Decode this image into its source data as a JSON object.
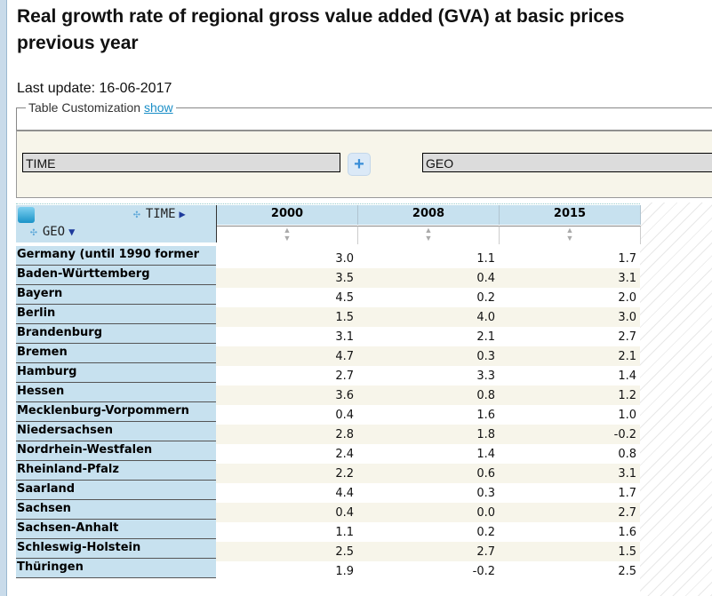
{
  "title_line1": "Real growth rate of regional gross value added (GVA) at basic prices",
  "title_line2": "previous year",
  "last_update": "Last update: 16-06-2017",
  "customization": {
    "label": "Table Customization",
    "link": "show"
  },
  "layout_panel": {
    "row_dim": "TIME",
    "col_dim": "GEO",
    "add_button": "+"
  },
  "table": {
    "time_axis": "TIME",
    "geo_axis": "GEO",
    "columns": [
      "2000",
      "2008",
      "2015"
    ],
    "rows": [
      {
        "geo": "Germany (until 1990 former",
        "values": [
          "3.0",
          "1.1",
          "1.7"
        ]
      },
      {
        "geo": "Baden-Württemberg",
        "values": [
          "3.5",
          "0.4",
          "3.1"
        ]
      },
      {
        "geo": "Bayern",
        "values": [
          "4.5",
          "0.2",
          "2.0"
        ]
      },
      {
        "geo": "Berlin",
        "values": [
          "1.5",
          "4.0",
          "3.0"
        ]
      },
      {
        "geo": "Brandenburg",
        "values": [
          "3.1",
          "2.1",
          "2.7"
        ]
      },
      {
        "geo": "Bremen",
        "values": [
          "4.7",
          "0.3",
          "2.1"
        ]
      },
      {
        "geo": "Hamburg",
        "values": [
          "2.7",
          "3.3",
          "1.4"
        ]
      },
      {
        "geo": "Hessen",
        "values": [
          "3.6",
          "0.8",
          "1.2"
        ]
      },
      {
        "geo": "Mecklenburg-Vorpommern",
        "values": [
          "0.4",
          "1.6",
          "1.0"
        ]
      },
      {
        "geo": "Niedersachsen",
        "values": [
          "2.8",
          "1.8",
          "-0.2"
        ]
      },
      {
        "geo": "Nordrhein-Westfalen",
        "values": [
          "2.4",
          "1.4",
          "0.8"
        ]
      },
      {
        "geo": "Rheinland-Pfalz",
        "values": [
          "2.2",
          "0.6",
          "3.1"
        ]
      },
      {
        "geo": "Saarland",
        "values": [
          "4.4",
          "0.3",
          "1.7"
        ]
      },
      {
        "geo": "Sachsen",
        "values": [
          "0.4",
          "0.0",
          "2.7"
        ]
      },
      {
        "geo": "Sachsen-Anhalt",
        "values": [
          "1.1",
          "0.2",
          "1.6"
        ]
      },
      {
        "geo": "Schleswig-Holstein",
        "values": [
          "2.5",
          "2.7",
          "1.5"
        ]
      },
      {
        "geo": "Thüringen",
        "values": [
          "1.9",
          "-0.2",
          "2.5"
        ]
      }
    ]
  }
}
